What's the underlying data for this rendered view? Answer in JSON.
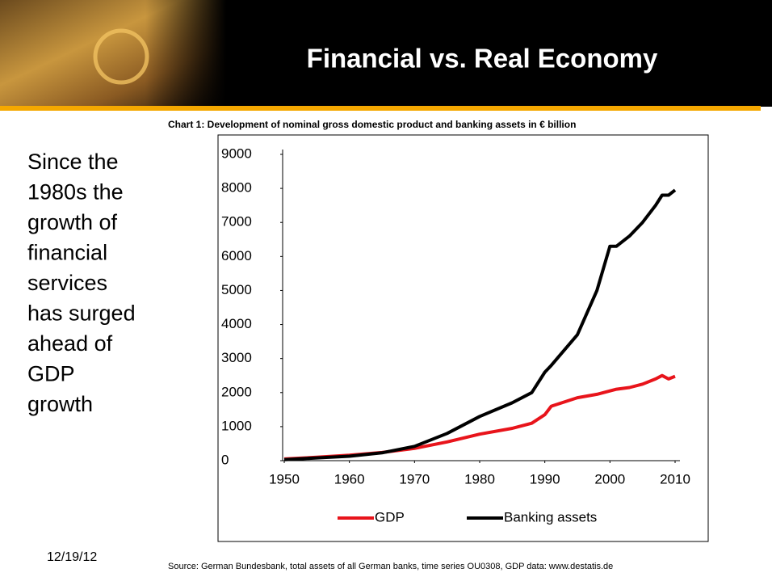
{
  "header": {
    "title": "Financial vs. Real Economy"
  },
  "sidebar": {
    "lines": [
      "Since the",
      "1980s the",
      "growth of",
      "financial",
      "services",
      "has surged",
      "ahead of",
      "GDP",
      "growth"
    ]
  },
  "footer": {
    "date": "12/19/12",
    "source": "Source: German Bundesbank, total assets of all German banks, time series OU0308, GDP data: www.destatis.de"
  },
  "chart_data": {
    "type": "line",
    "title": "Chart 1: Development of nominal gross domestic product and banking assets in € billion",
    "x": [
      1950,
      1955,
      1960,
      1965,
      1970,
      1975,
      1980,
      1985,
      1988,
      1990,
      1991,
      1995,
      1998,
      2000,
      2001,
      2003,
      2005,
      2007,
      2008,
      2009,
      2010
    ],
    "series": [
      {
        "name": "GDP",
        "color": "#e8141b",
        "values": [
          50,
          100,
          160,
          240,
          360,
          550,
          780,
          950,
          1100,
          1350,
          1600,
          1850,
          1950,
          2050,
          2100,
          2150,
          2250,
          2400,
          2500,
          2400,
          2480
        ]
      },
      {
        "name": "Banking assets",
        "color": "#000000",
        "values": [
          30,
          80,
          130,
          230,
          420,
          800,
          1300,
          1700,
          2000,
          2600,
          2800,
          3700,
          5000,
          6300,
          6300,
          6600,
          7000,
          7500,
          7800,
          7800,
          7950
        ]
      }
    ],
    "xlim": [
      1950,
      2010
    ],
    "xticks": [
      1950,
      1960,
      1970,
      1980,
      1990,
      2000,
      2010
    ],
    "ylim": [
      0,
      9000
    ],
    "yticks": [
      0,
      1000,
      2000,
      3000,
      4000,
      5000,
      6000,
      7000,
      8000,
      9000
    ],
    "grid": false,
    "legend": "bottom"
  }
}
